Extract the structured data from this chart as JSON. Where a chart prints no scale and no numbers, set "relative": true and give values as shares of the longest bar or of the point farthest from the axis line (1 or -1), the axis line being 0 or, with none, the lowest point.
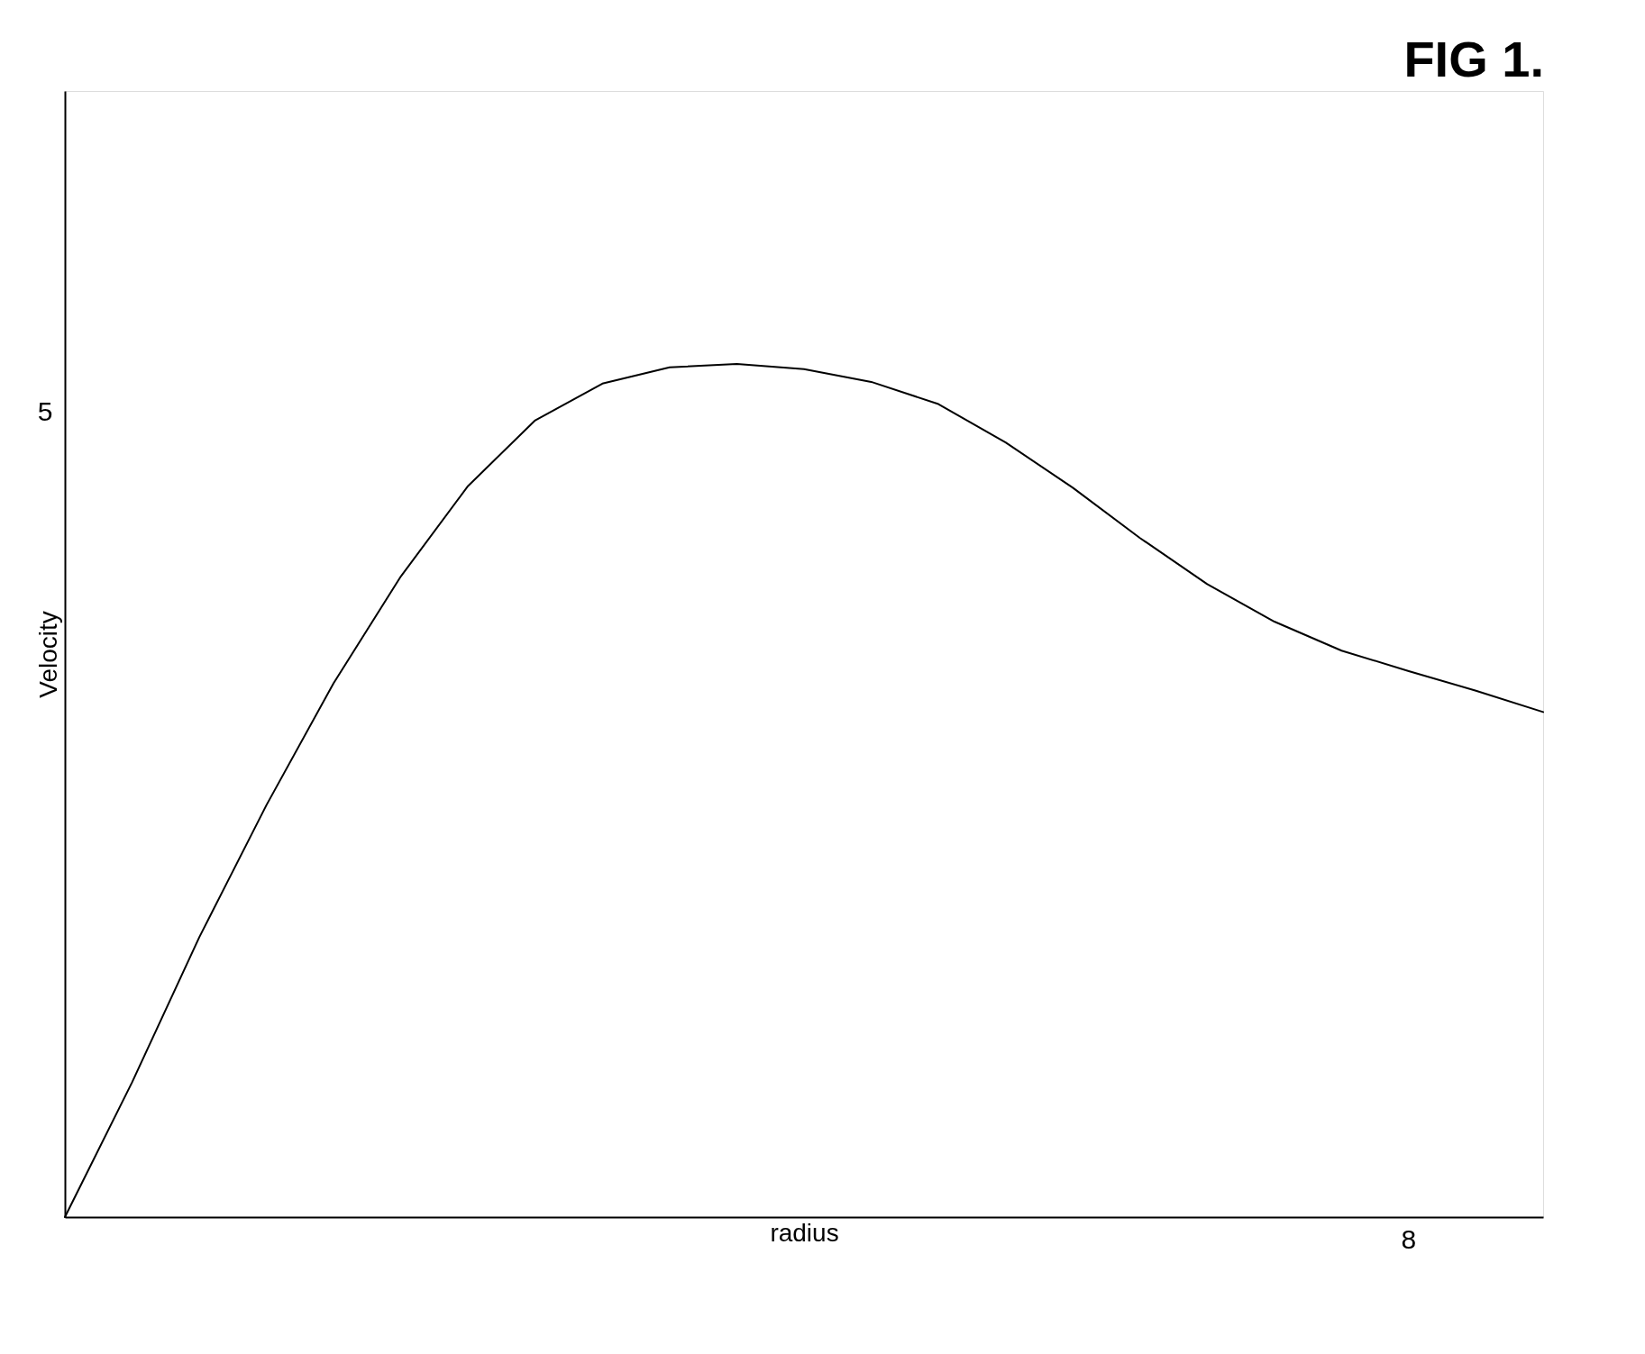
{
  "chart_data": {
    "type": "line",
    "title": "FIG 1.",
    "xlabel": "radius",
    "ylabel": "Velocity",
    "relative": true,
    "annotations": [
      "5",
      "8"
    ],
    "categories": [
      null,
      null,
      null,
      null,
      null,
      null,
      null,
      null,
      null,
      null,
      null,
      null,
      null,
      null,
      null,
      null,
      null,
      null,
      null,
      null,
      null,
      null,
      null
    ],
    "series": [
      {
        "color": "#000000",
        "values": [
          0,
          0.158,
          0.328,
          0.483,
          0.626,
          0.751,
          0.857,
          0.934,
          0.977,
          0.996,
          1,
          0.994,
          0.979,
          0.953,
          0.908,
          0.855,
          0.796,
          0.742,
          0.698,
          0.664,
          0.64,
          0.617,
          0.592
        ]
      }
    ],
    "grid": false,
    "marker": "none",
    "line_style": "solid",
    "legend": false
  }
}
